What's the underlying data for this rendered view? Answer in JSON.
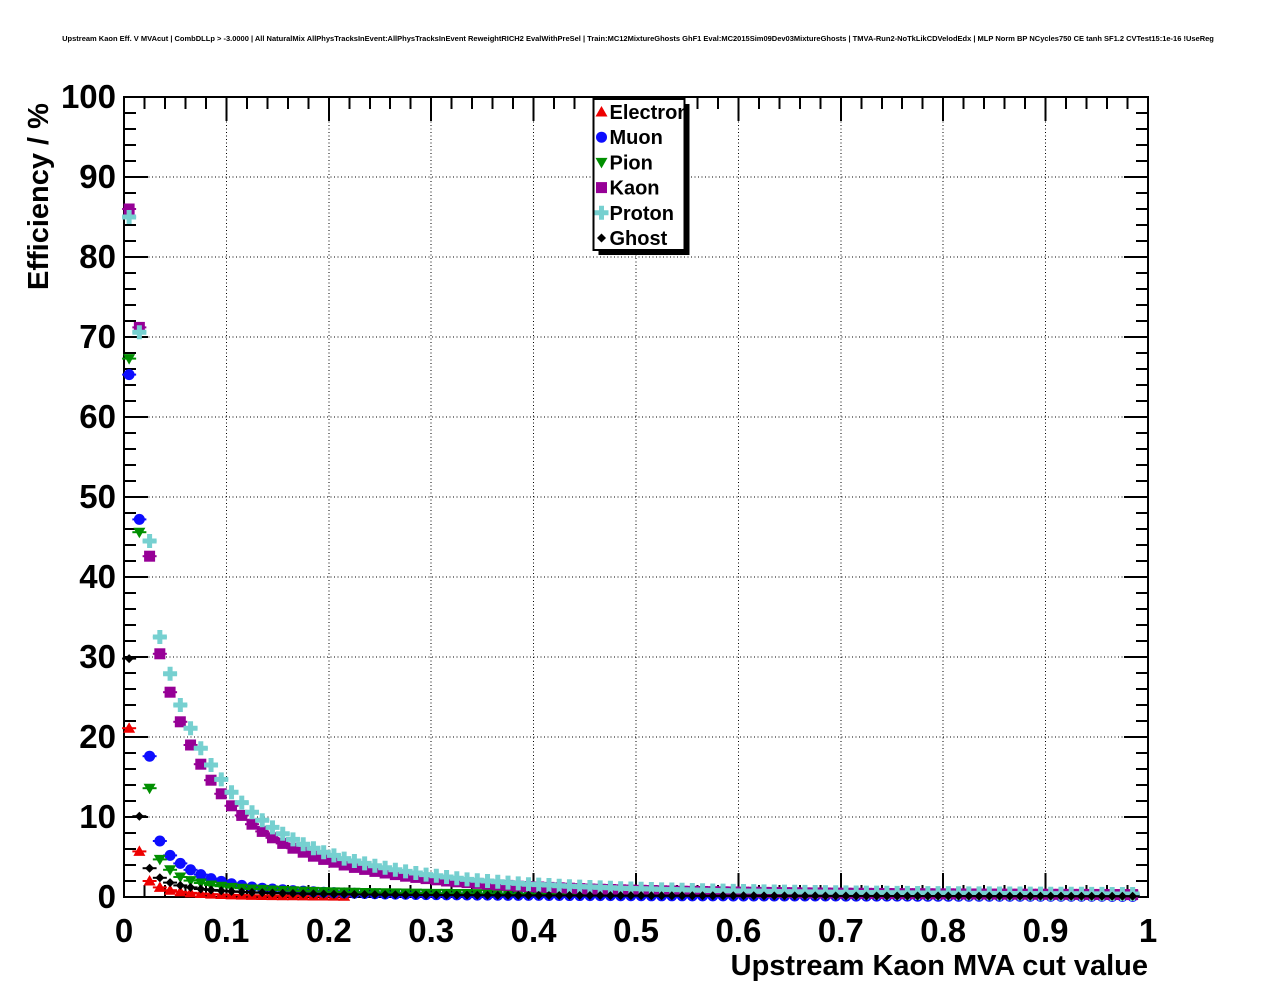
{
  "chart_data": {
    "type": "scatter",
    "title": "Upstream Kaon Eff. V MVAcut | CombDLLp > -3.0000 | All NaturalMix AllPhysTracksInEvent:AllPhysTracksInEvent ReweightRICH2 EvalWithPreSel | Train:MC12MixtureGhosts GhF1 Eval:MC2015Sim09Dev03MixtureGhosts | TMVA-Run2-NoTkLikCDVelodEdx | MLP Norm BP NCycles750 CE tanh SF1.2 CVTest15:1e-16 !UseReg",
    "xlabel": "Upstream Kaon MVA cut value",
    "ylabel": "Efficiency / %",
    "xlim": [
      0,
      1
    ],
    "ylim": [
      0,
      100
    ],
    "grid": "dotted",
    "legend_position": "top-center",
    "x_tick_values": [
      0,
      0.1,
      0.2,
      0.3,
      0.4,
      0.5,
      0.6,
      0.7,
      0.8,
      0.9,
      1
    ],
    "x_tick_labels": [
      "0",
      "0.1",
      "0.2",
      "0.3",
      "0.4",
      "0.5",
      "0.6",
      "0.7",
      "0.8",
      "0.9",
      "1"
    ],
    "y_tick_values": [
      0,
      10,
      20,
      30,
      40,
      50,
      60,
      70,
      80,
      90,
      100
    ],
    "y_tick_labels": [
      "0",
      "10",
      "20",
      "30",
      "40",
      "50",
      "60",
      "70",
      "80",
      "90",
      "100"
    ],
    "x_minor_step": 0.02,
    "y_minor_step": 2,
    "bin_width": 0.01,
    "series": [
      {
        "name": "Electron",
        "marker": "triangle-up",
        "color": "#ee0000",
        "x0": 0.005,
        "dx": 0.01,
        "y": [
          21.1,
          5.7,
          2.0,
          1.2,
          0.85,
          0.65,
          0.52,
          0.43,
          0.36,
          0.31,
          0.27,
          0.24,
          0.21,
          0.19,
          0.17,
          0.16,
          0.15,
          0.14,
          0.13,
          0.12,
          0.11,
          0.1
        ]
      },
      {
        "name": "Muon",
        "marker": "circle",
        "color": "#0d0dff",
        "x0": 0.005,
        "dx": 0.01,
        "y": [
          65.3,
          47.2,
          17.6,
          7.0,
          5.2,
          4.2,
          3.4,
          2.8,
          2.3,
          1.95,
          1.65,
          1.45,
          1.25,
          1.1,
          1.0,
          0.9,
          0.8,
          0.73,
          0.66,
          0.6,
          0.55,
          0.51,
          0.47,
          0.44,
          0.41,
          0.38,
          0.36,
          0.34,
          0.32,
          0.3,
          0.29,
          0.27,
          0.26,
          0.25,
          0.24,
          0.23,
          0.22,
          0.21,
          0.21,
          0.2,
          0.2,
          0.19,
          0.19,
          0.18,
          0.18,
          0.17,
          0.17,
          0.17,
          0.16,
          0.16,
          0.16,
          0.15,
          0.15,
          0.15,
          0.15,
          0.14,
          0.14,
          0.14,
          0.14,
          0.13,
          0.13,
          0.13,
          0.13,
          0.13,
          0.12,
          0.12,
          0.12,
          0.12,
          0.12,
          0.12,
          0.11,
          0.11,
          0.11,
          0.11,
          0.11,
          0.11,
          0.11,
          0.1,
          0.1,
          0.1,
          0.1,
          0.1,
          0.1,
          0.1,
          0.1,
          0.1,
          0.1,
          0.09,
          0.09,
          0.09,
          0.09,
          0.09,
          0.09,
          0.09,
          0.09,
          0.09,
          0.08,
          0.08,
          0.08
        ]
      },
      {
        "name": "Pion",
        "marker": "triangle-down",
        "color": "#008f00",
        "x0": 0.005,
        "dx": 0.01,
        "y": [
          67.3,
          45.6,
          13.6,
          4.7,
          3.4,
          2.5,
          2.05,
          1.75,
          1.5,
          1.35,
          1.2,
          1.1,
          1.0,
          0.95,
          0.88,
          0.83,
          0.78,
          0.74,
          0.7,
          0.67,
          0.64,
          0.62,
          0.59,
          0.57,
          0.55,
          0.53,
          0.52,
          0.5,
          0.49,
          0.47,
          0.46,
          0.45,
          0.44,
          0.43,
          0.42,
          0.41,
          0.41,
          0.4,
          0.39,
          0.39,
          0.38,
          0.38,
          0.37,
          0.37,
          0.36,
          0.36,
          0.35,
          0.35,
          0.34,
          0.34,
          0.34,
          0.33,
          0.33,
          0.33,
          0.32,
          0.32,
          0.32,
          0.31,
          0.31,
          0.31,
          0.31,
          0.3,
          0.3,
          0.3,
          0.3,
          0.29,
          0.29,
          0.29,
          0.29,
          0.29,
          0.28,
          0.28,
          0.28,
          0.28,
          0.28,
          0.27,
          0.27,
          0.27,
          0.27,
          0.27,
          0.27,
          0.26,
          0.26,
          0.26,
          0.26,
          0.26,
          0.26,
          0.25,
          0.25,
          0.25,
          0.25,
          0.25,
          0.25,
          0.24,
          0.24,
          0.24,
          0.24,
          0.24,
          0.24
        ]
      },
      {
        "name": "Kaon",
        "marker": "square",
        "color": "#960096",
        "x0": 0.005,
        "dx": 0.01,
        "y": [
          86.0,
          71.2,
          42.6,
          30.4,
          25.6,
          21.9,
          19.0,
          16.6,
          14.6,
          12.9,
          11.4,
          10.2,
          9.1,
          8.2,
          7.4,
          6.7,
          6.1,
          5.6,
          5.1,
          4.7,
          4.35,
          4.0,
          3.7,
          3.45,
          3.2,
          3.0,
          2.8,
          2.6,
          2.45,
          2.3,
          2.15,
          2.0,
          1.9,
          1.8,
          1.7,
          1.6,
          1.5,
          1.45,
          1.35,
          1.3,
          1.25,
          1.2,
          1.15,
          1.1,
          1.05,
          1.0,
          0.97,
          0.94,
          0.9,
          0.87,
          0.84,
          0.81,
          0.78,
          0.76,
          0.73,
          0.71,
          0.69,
          0.67,
          0.65,
          0.63,
          0.61,
          0.6,
          0.58,
          0.57,
          0.55,
          0.54,
          0.52,
          0.51,
          0.5,
          0.49,
          0.48,
          0.47,
          0.46,
          0.45,
          0.44,
          0.43,
          0.42,
          0.42,
          0.41,
          0.4,
          0.4,
          0.39,
          0.38,
          0.38,
          0.37,
          0.37,
          0.36,
          0.36,
          0.35,
          0.35,
          0.34,
          0.34,
          0.33,
          0.33,
          0.32,
          0.32,
          0.31,
          0.31,
          0.3
        ]
      },
      {
        "name": "Proton",
        "marker": "plus",
        "color": "#76d0d0",
        "x0": 0.005,
        "dx": 0.01,
        "y": [
          85.0,
          70.6,
          44.5,
          32.5,
          27.9,
          24.0,
          21.1,
          18.6,
          16.5,
          14.7,
          13.1,
          11.8,
          10.6,
          9.6,
          8.7,
          7.9,
          7.2,
          6.6,
          6.1,
          5.6,
          5.2,
          4.8,
          4.5,
          4.2,
          3.9,
          3.65,
          3.4,
          3.2,
          3.0,
          2.8,
          2.65,
          2.5,
          2.35,
          2.2,
          2.1,
          2.0,
          1.9,
          1.8,
          1.7,
          1.6,
          1.55,
          1.5,
          1.4,
          1.35,
          1.3,
          1.25,
          1.2,
          1.15,
          1.1,
          1.07,
          1.03,
          1.0,
          0.96,
          0.93,
          0.9,
          0.87,
          0.84,
          0.82,
          0.79,
          0.77,
          0.75,
          0.73,
          0.71,
          0.69,
          0.67,
          0.65,
          0.64,
          0.62,
          0.61,
          0.59,
          0.58,
          0.57,
          0.55,
          0.54,
          0.53,
          0.52,
          0.51,
          0.5,
          0.49,
          0.48,
          0.48,
          0.47,
          0.46,
          0.45,
          0.45,
          0.44,
          0.43,
          0.43,
          0.42,
          0.42,
          0.41,
          0.41,
          0.4,
          0.4,
          0.39,
          0.39,
          0.38,
          0.38,
          0.37
        ]
      },
      {
        "name": "Ghost",
        "marker": "diamond",
        "color": "#000000",
        "x0": 0.005,
        "dx": 0.01,
        "y": [
          29.8,
          10.1,
          3.6,
          2.4,
          1.8,
          1.45,
          1.2,
          1.0,
          0.88,
          0.78,
          0.7,
          0.64,
          0.58,
          0.54,
          0.5,
          0.47,
          0.44,
          0.41,
          0.39,
          0.37,
          0.35,
          0.34,
          0.32,
          0.31,
          0.3,
          0.29,
          0.28,
          0.27,
          0.26,
          0.25,
          0.25,
          0.24,
          0.23,
          0.23,
          0.22,
          0.22,
          0.21,
          0.21,
          0.2,
          0.2,
          0.2,
          0.19,
          0.19,
          0.19,
          0.18,
          0.18,
          0.18,
          0.17,
          0.17,
          0.17,
          0.17,
          0.16,
          0.16,
          0.16,
          0.16,
          0.16,
          0.15,
          0.15,
          0.15,
          0.15,
          0.15,
          0.15,
          0.14,
          0.14,
          0.14,
          0.14,
          0.14,
          0.14,
          0.13,
          0.13,
          0.13,
          0.13,
          0.13,
          0.13,
          0.13,
          0.12,
          0.12,
          0.12,
          0.12,
          0.12,
          0.12,
          0.12,
          0.12,
          0.11,
          0.11,
          0.11,
          0.11,
          0.11,
          0.11,
          0.11,
          0.11,
          0.11,
          0.1,
          0.1,
          0.1,
          0.1,
          0.1,
          0.1,
          0.1
        ]
      }
    ]
  },
  "colors": {
    "frame": "#000000",
    "grid": "#000000",
    "background": "#ffffff",
    "text": "#000000"
  }
}
